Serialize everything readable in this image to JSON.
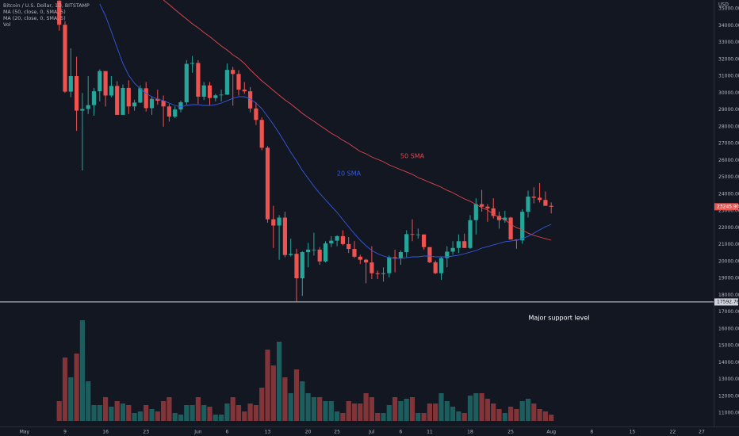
{
  "chart_data": {
    "type": "candlestick",
    "title": "Bitcoin / U.S. Dollar, 1D, BITSTAMP",
    "y_unit": "USD",
    "x": [
      "May 8",
      "May 9",
      "May 10",
      "May 11",
      "May 12",
      "May 13",
      "May 14",
      "May 15",
      "May 16",
      "May 17",
      "May 18",
      "May 19",
      "May 20",
      "May 21",
      "May 22",
      "May 23",
      "May 24",
      "May 25",
      "May 26",
      "May 27",
      "May 28",
      "May 29",
      "May 30",
      "May 31",
      "Jun 1",
      "Jun 2",
      "Jun 3",
      "Jun 4",
      "Jun 5",
      "Jun 6",
      "Jun 7",
      "Jun 8",
      "Jun 9",
      "Jun 10",
      "Jun 11",
      "Jun 12",
      "Jun 13",
      "Jun 14",
      "Jun 15",
      "Jun 16",
      "Jun 17",
      "Jun 18",
      "Jun 19",
      "Jun 20",
      "Jun 21",
      "Jun 22",
      "Jun 23",
      "Jun 24",
      "Jun 25",
      "Jun 26",
      "Jun 27",
      "Jun 28",
      "Jun 29",
      "Jun 30",
      "Jul 1",
      "Jul 2",
      "Jul 3",
      "Jul 4",
      "Jul 5",
      "Jul 6",
      "Jul 7",
      "Jul 8",
      "Jul 9",
      "Jul 10",
      "Jul 11",
      "Jul 12",
      "Jul 13",
      "Jul 14",
      "Jul 15",
      "Jul 16",
      "Jul 17",
      "Jul 18",
      "Jul 19",
      "Jul 20",
      "Jul 21",
      "Jul 22",
      "Jul 23",
      "Jul 24",
      "Jul 25",
      "Jul 26",
      "Jul 27",
      "Jul 28",
      "Jul 29",
      "Jul 30",
      "Jul 31",
      "Aug 1"
    ],
    "open": [
      35480,
      34050,
      30080,
      31000,
      28950,
      29050,
      29280,
      30100,
      31300,
      29850,
      30420,
      28700,
      30300,
      29200,
      29430,
      30280,
      29100,
      29650,
      29540,
      29200,
      28600,
      29020,
      29450,
      31730,
      31780,
      29780,
      30450,
      29700,
      29860,
      29900,
      31370,
      31130,
      30200,
      30100,
      29080,
      28400,
      26750,
      22500,
      22130,
      22600,
      20380,
      20450,
      19000,
      20550,
      20700,
      20700,
      20000,
      21070,
      21230,
      21500,
      21030,
      20740,
      20280,
      20100,
      19940,
      19300,
      19250,
      19300,
      20250,
      20200,
      20550,
      21620,
      21600,
      21600,
      20850,
      19950,
      19300,
      20200,
      20580,
      20800,
      21200,
      20800,
      22450,
      23400,
      23250,
      23150,
      22700,
      22450,
      22600,
      21300,
      21250,
      22950,
      23850,
      23780,
      23650,
      23300
    ],
    "high": [
      35500,
      34250,
      32650,
      32150,
      30000,
      31000,
      30300,
      31400,
      31300,
      31000,
      30700,
      30500,
      30750,
      29600,
      30450,
      30650,
      29800,
      30200,
      29850,
      29350,
      29200,
      29550,
      31950,
      32200,
      31950,
      30650,
      30650,
      29950,
      30200,
      31750,
      31550,
      31350,
      30650,
      30350,
      29450,
      28550,
      26850,
      23300,
      22750,
      22950,
      21350,
      20750,
      20600,
      21100,
      21700,
      20850,
      21200,
      21500,
      21550,
      21850,
      21450,
      21200,
      20400,
      20150,
      20900,
      19450,
      19650,
      20350,
      20700,
      20650,
      21850,
      22500,
      21950,
      21600,
      20850,
      20050,
      20300,
      20900,
      21200,
      21600,
      21650,
      22750,
      23750,
      24250,
      23400,
      23750,
      22950,
      23000,
      22650,
      21300,
      23100,
      24200,
      24400,
      24650,
      24150,
      23500
    ],
    "low": [
      33700,
      30000,
      29750,
      27750,
      25400,
      28750,
      28650,
      29500,
      29200,
      29750,
      28700,
      28700,
      28750,
      28950,
      29400,
      28900,
      28700,
      29300,
      28000,
      28300,
      28500,
      28850,
      29300,
      31200,
      29350,
      29580,
      29250,
      29500,
      29500,
      29880,
      29250,
      29850,
      29950,
      28850,
      28100,
      26600,
      22300,
      20800,
      20100,
      20250,
      20300,
      17600,
      17950,
      19650,
      20350,
      19800,
      19950,
      20850,
      20900,
      20950,
      20500,
      20200,
      19850,
      18700,
      18950,
      18950,
      18800,
      19050,
      19350,
      19800,
      20250,
      21200,
      21350,
      20700,
      19900,
      19250,
      18900,
      19650,
      20400,
      20500,
      20800,
      20750,
      21600,
      22950,
      22350,
      22550,
      21950,
      22300,
      21300,
      20750,
      21050,
      22600,
      23450,
      23500,
      23300,
      22850
    ],
    "close": [
      34050,
      30080,
      31000,
      28950,
      29050,
      29280,
      30100,
      31300,
      29850,
      30420,
      28700,
      30300,
      29200,
      29430,
      30280,
      29100,
      29650,
      29540,
      29200,
      28600,
      29020,
      29450,
      31730,
      31780,
      29780,
      30450,
      29700,
      29860,
      29900,
      31370,
      31130,
      30200,
      30100,
      29080,
      28400,
      26750,
      22500,
      22130,
      22600,
      20380,
      20450,
      19000,
      20550,
      20700,
      20700,
      20000,
      21070,
      21230,
      21500,
      21030,
      20740,
      20280,
      20100,
      19940,
      19300,
      19250,
      19300,
      20250,
      20200,
      20550,
      21620,
      21600,
      21600,
      20850,
      19950,
      19300,
      20200,
      20580,
      20800,
      21200,
      20800,
      22450,
      23400,
      23250,
      23150,
      22700,
      22450,
      22600,
      21300,
      21250,
      22950,
      23850,
      23780,
      23650,
      23300,
      23245.9
    ],
    "up_color": "#26a69a",
    "down_color": "#ef5350",
    "last_price_label": "23245.90",
    "support_level": 17592.78,
    "volume": {
      "name": "Vol",
      "values": [
        2500,
        8000,
        5500,
        8500,
        12700,
        5000,
        2000,
        2000,
        3000,
        1800,
        2500,
        2200,
        2000,
        1000,
        1200,
        2000,
        1500,
        1200,
        2500,
        3000,
        1000,
        800,
        2000,
        2000,
        3000,
        2000,
        1800,
        800,
        800,
        2200,
        3000,
        2000,
        1200,
        2200,
        2000,
        4200,
        9000,
        7000,
        10000,
        5500,
        3500,
        6500,
        5000,
        3500,
        3000,
        3000,
        2500,
        2500,
        1200,
        1000,
        2500,
        2200,
        2200,
        3500,
        3000,
        1000,
        1000,
        2000,
        3000,
        2500,
        2800,
        3000,
        1000,
        1000,
        2200,
        2200,
        3500,
        2500,
        1800,
        1200,
        1000,
        3200,
        3500,
        3500,
        2800,
        2200,
        1500,
        1000,
        1800,
        1500,
        2500,
        2800,
        2200,
        1500,
        1200,
        800
      ]
    },
    "series": [
      {
        "name": "MA (50, close, 0, SMA, 5)",
        "color": "#e0474f",
        "values": [
          null,
          null,
          null,
          null,
          null,
          null,
          null,
          null,
          null,
          null,
          null,
          null,
          null,
          null,
          null,
          null,
          null,
          null,
          35520,
          35240,
          34950,
          34670,
          34390,
          34110,
          33870,
          33590,
          33350,
          33070,
          32790,
          32550,
          32270,
          32040,
          31750,
          31380,
          31050,
          30720,
          30440,
          30150,
          29870,
          29590,
          29350,
          29070,
          28790,
          28550,
          28320,
          28080,
          27850,
          27610,
          27420,
          27190,
          27000,
          26760,
          26530,
          26390,
          26200,
          26060,
          25920,
          25730,
          25590,
          25450,
          25310,
          25170,
          24980,
          24840,
          24690,
          24550,
          24410,
          24220,
          24080,
          23890,
          23710,
          23570,
          23380,
          23190,
          23050,
          22810,
          22620,
          22480,
          22200,
          22010,
          21870,
          21680,
          21540,
          21450,
          21350,
          21260
        ]
      },
      {
        "name": "MA (20, close, 0, SMA, 5)",
        "color": "#3559e0",
        "values": [
          null,
          null,
          null,
          null,
          null,
          null,
          null,
          35280,
          34580,
          33640,
          32690,
          31750,
          31050,
          30580,
          30250,
          29970,
          29780,
          29640,
          29540,
          29400,
          29260,
          29170,
          29260,
          29310,
          29310,
          29260,
          29260,
          29310,
          29400,
          29540,
          29680,
          29780,
          29780,
          29640,
          29400,
          29070,
          28600,
          28130,
          27610,
          27050,
          26480,
          25970,
          25400,
          24930,
          24460,
          24040,
          23660,
          23280,
          22910,
          22480,
          22060,
          21640,
          21260,
          20930,
          20650,
          20460,
          20320,
          20220,
          20180,
          20180,
          20220,
          20270,
          20270,
          20320,
          20320,
          20270,
          20270,
          20270,
          20320,
          20370,
          20460,
          20550,
          20650,
          20790,
          20880,
          20980,
          21070,
          21170,
          21210,
          21260,
          21350,
          21490,
          21680,
          21870,
          22060,
          22200
        ]
      }
    ],
    "annotations": [
      {
        "text": "50 SMA",
        "color": "#e0474f"
      },
      {
        "text": "20 SMA",
        "color": "#3559e0"
      },
      {
        "text": "Major support level",
        "color": "#ffffff"
      }
    ],
    "ylim": [
      10200,
      35520
    ],
    "yticks": [
      {
        "value": 11000,
        "label": "11000.00"
      },
      {
        "value": 12000,
        "label": "12000.00"
      },
      {
        "value": 13000,
        "label": "13000.00"
      },
      {
        "value": 14000,
        "label": "14000.00"
      },
      {
        "value": 15000,
        "label": "15000.00"
      },
      {
        "value": 16000,
        "label": "16000.00"
      },
      {
        "value": 17000,
        "label": "17000.00"
      },
      {
        "value": 18000,
        "label": "18000.00"
      },
      {
        "value": 19000,
        "label": "19000.00"
      },
      {
        "value": 20000,
        "label": "20000.00"
      },
      {
        "value": 21000,
        "label": "21000.00"
      },
      {
        "value": 22000,
        "label": "22000.00"
      },
      {
        "value": 23000,
        "label": "23000.00"
      },
      {
        "value": 24000,
        "label": "24000.00"
      },
      {
        "value": 25000,
        "label": "25000.00"
      },
      {
        "value": 26000,
        "label": "26000.00"
      },
      {
        "value": 27000,
        "label": "27000.00"
      },
      {
        "value": 28000,
        "label": "28000.00"
      },
      {
        "value": 29000,
        "label": "29000.00"
      },
      {
        "value": 30000,
        "label": "30000.00"
      },
      {
        "value": 31000,
        "label": "31000.00"
      },
      {
        "value": 32000,
        "label": "32000.00"
      },
      {
        "value": 33000,
        "label": "33000.00"
      },
      {
        "value": 34000,
        "label": "34000.00"
      },
      {
        "value": 35000,
        "label": "35000.00"
      }
    ],
    "xticks": [
      {
        "value": "May 2",
        "label": "May"
      },
      {
        "value": "May 9",
        "label": "9"
      },
      {
        "value": "May 16",
        "label": "16"
      },
      {
        "value": "May 23",
        "label": "23"
      },
      {
        "value": "Jun 1",
        "label": "Jun"
      },
      {
        "value": "Jun 6",
        "label": "6"
      },
      {
        "value": "Jun 13",
        "label": "13"
      },
      {
        "value": "Jun 20",
        "label": "20"
      },
      {
        "value": "Jun 25",
        "label": "25"
      },
      {
        "value": "Jul 1",
        "label": "Jul"
      },
      {
        "value": "Jul 6",
        "label": "6"
      },
      {
        "value": "Jul 11",
        "label": "11"
      },
      {
        "value": "Jul 18",
        "label": "18"
      },
      {
        "value": "Jul 25",
        "label": "25"
      },
      {
        "value": "Aug 1",
        "label": "Aug"
      },
      {
        "value": "Aug 8",
        "label": "8"
      },
      {
        "value": "Aug 15",
        "label": "15"
      },
      {
        "value": "Aug 22",
        "label": "22"
      },
      {
        "value": "Aug 27",
        "label": "27"
      }
    ],
    "grid": false
  }
}
